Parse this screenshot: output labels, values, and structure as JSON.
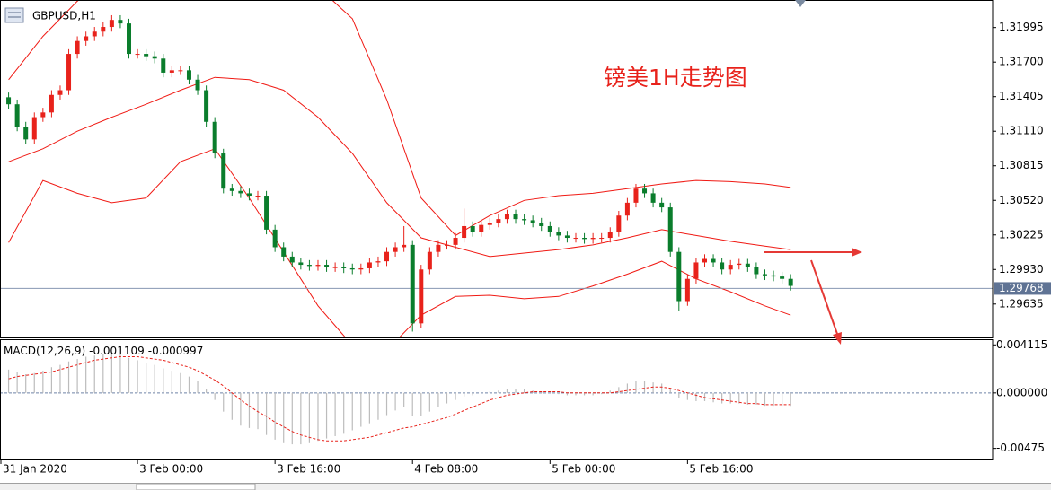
{
  "chart_data": {
    "type": "candlestick",
    "symbol": "GBPUSD,H1",
    "annotation": "镑美1H走势图",
    "xlim": [
      -1,
      114.5
    ],
    "xticks": [
      {
        "value": -1,
        "label": "31 Jan 2020"
      },
      {
        "value": 15,
        "label": "3 Feb 00:00"
      },
      {
        "value": 31,
        "label": "3 Feb 16:00"
      },
      {
        "value": 47,
        "label": "4 Feb 08:00"
      },
      {
        "value": 63,
        "label": "5 Feb 00:00"
      },
      {
        "value": 79,
        "label": "5 Feb 16:00"
      }
    ],
    "ylim": [
      1.2935,
      1.3223
    ],
    "yticks": [
      1.31995,
      {
        "value": 1.317,
        "label": "1.31700"
      },
      1.31405,
      {
        "value": 1.3111,
        "label": "1.31110"
      },
      1.30815,
      {
        "value": 1.3052,
        "label": "1.30520"
      },
      1.30225,
      {
        "value": 1.2993,
        "label": "1.29930"
      },
      1.29635
    ],
    "current_price": 1.29768,
    "up_color": "#e8221b",
    "down_color": "#0a7d2c",
    "open": [
      1.314,
      1.3134,
      1.3115,
      1.3104,
      1.3123,
      1.3127,
      1.3142,
      1.3146,
      1.3177,
      1.3188,
      1.3192,
      1.3196,
      1.32,
      1.3206,
      1.3203,
      1.3177,
      1.3177,
      1.3175,
      1.3173,
      1.3161,
      1.3163,
      1.3163,
      1.3155,
      1.3146,
      1.3119,
      1.3092,
      1.3062,
      1.306,
      1.3058,
      1.3056,
      1.3056,
      1.3027,
      1.3012,
      1.3004,
      1.2999,
      1.2997,
      1.2996,
      1.2997,
      1.2995,
      1.2995,
      1.2994,
      1.2993,
      1.2994,
      1.2999,
      1.3,
      1.3008,
      1.3012,
      1.3014,
      1.2947,
      1.2993,
      1.3008,
      1.3014,
      1.3014,
      1.302,
      1.303,
      1.3025,
      1.3031,
      1.3033,
      1.3036,
      1.304,
      1.3036,
      1.3035,
      1.3033,
      1.303,
      1.3025,
      1.3022,
      1.302,
      1.302,
      1.3019,
      1.302,
      1.302,
      1.3025,
      1.3039,
      1.305,
      1.3062,
      1.3058,
      1.305,
      1.3046,
      1.3008,
      1.2966,
      1.2985,
      1.2999,
      1.3002,
      1.2999,
      1.2993,
      1.2997,
      1.2998,
      1.2995,
      1.2989,
      1.2988,
      1.2987,
      1.2985
    ],
    "high": [
      1.3144,
      1.3138,
      1.3119,
      1.3127,
      1.3131,
      1.3146,
      1.315,
      1.3181,
      1.3192,
      1.3196,
      1.32,
      1.3204,
      1.321,
      1.321,
      1.3207,
      1.3181,
      1.3181,
      1.3179,
      1.3177,
      1.3167,
      1.3167,
      1.3167,
      1.3159,
      1.315,
      1.3123,
      1.3096,
      1.3066,
      1.3064,
      1.3062,
      1.306,
      1.306,
      1.3031,
      1.3016,
      1.3008,
      1.3003,
      1.3001,
      1.3001,
      1.3001,
      1.2999,
      1.2999,
      1.2998,
      1.2998,
      1.3003,
      1.3004,
      1.3012,
      1.3016,
      1.303,
      1.3018,
      1.2997,
      1.3012,
      1.3018,
      1.3018,
      1.3024,
      1.3045,
      1.3034,
      1.3035,
      1.3037,
      1.304,
      1.3044,
      1.3044,
      1.304,
      1.3039,
      1.3037,
      1.3034,
      1.3029,
      1.3026,
      1.3024,
      1.3024,
      1.3024,
      1.3024,
      1.3029,
      1.3043,
      1.3054,
      1.3066,
      1.3066,
      1.3062,
      1.3054,
      1.305,
      1.3012,
      1.2989,
      1.3003,
      1.3006,
      1.3006,
      1.3003,
      1.3001,
      1.3002,
      1.3002,
      1.2999,
      1.2993,
      1.2992,
      1.2991,
      1.2989
    ],
    "low": [
      1.313,
      1.3111,
      1.31,
      1.31,
      1.3119,
      1.3123,
      1.3138,
      1.3142,
      1.3173,
      1.3184,
      1.3188,
      1.3192,
      1.3196,
      1.3199,
      1.3173,
      1.3173,
      1.3171,
      1.3169,
      1.3157,
      1.3157,
      1.3159,
      1.3151,
      1.3142,
      1.3115,
      1.3088,
      1.3058,
      1.3056,
      1.3054,
      1.3052,
      1.3052,
      1.3023,
      1.3008,
      1.3,
      1.2995,
      1.2993,
      1.2992,
      1.2992,
      1.2991,
      1.2991,
      1.299,
      1.2989,
      1.2989,
      1.299,
      1.2995,
      1.2996,
      1.3004,
      1.3008,
      1.294,
      1.2943,
      1.2989,
      1.3004,
      1.301,
      1.301,
      1.3016,
      1.3021,
      1.3021,
      1.3027,
      1.3029,
      1.3032,
      1.3032,
      1.3031,
      1.3029,
      1.3026,
      1.3021,
      1.3018,
      1.3016,
      1.3016,
      1.3015,
      1.3015,
      1.3016,
      1.3016,
      1.3021,
      1.3035,
      1.3046,
      1.3054,
      1.3046,
      1.3042,
      1.3004,
      1.2958,
      1.2962,
      1.2981,
      1.2995,
      1.2995,
      1.2989,
      1.2989,
      1.2993,
      1.2991,
      1.2985,
      1.2984,
      1.2983,
      1.2981,
      1.2975
    ],
    "close": [
      1.3134,
      1.3115,
      1.3104,
      1.3123,
      1.3127,
      1.3142,
      1.3146,
      1.3177,
      1.3188,
      1.3192,
      1.3196,
      1.32,
      1.3206,
      1.3203,
      1.3177,
      1.3177,
      1.3175,
      1.3173,
      1.3161,
      1.3163,
      1.3163,
      1.3155,
      1.3146,
      1.3119,
      1.3092,
      1.3062,
      1.306,
      1.3058,
      1.3056,
      1.3056,
      1.3027,
      1.3012,
      1.3004,
      1.2999,
      1.2997,
      1.2996,
      1.2997,
      1.2995,
      1.2995,
      1.2994,
      1.2993,
      1.2994,
      1.2999,
      1.3,
      1.3008,
      1.3012,
      1.3014,
      1.2947,
      1.2993,
      1.3008,
      1.3014,
      1.3014,
      1.302,
      1.303,
      1.3025,
      1.3031,
      1.3033,
      1.3036,
      1.304,
      1.3036,
      1.3035,
      1.3033,
      1.303,
      1.3025,
      1.3022,
      1.302,
      1.302,
      1.3019,
      1.302,
      1.302,
      1.3025,
      1.3039,
      1.305,
      1.3062,
      1.3058,
      1.305,
      1.3046,
      1.3008,
      1.2966,
      1.2985,
      1.2999,
      1.3002,
      1.2999,
      1.2993,
      1.2997,
      1.2998,
      1.2995,
      1.2989,
      1.2988,
      1.2987,
      1.2985,
      1.2979
    ],
    "bands": {
      "color": "#f01a14",
      "x": [
        0,
        4,
        8,
        12,
        16,
        20,
        24,
        28,
        32,
        36,
        40,
        44,
        48,
        52,
        56,
        60,
        64,
        68,
        72,
        76,
        80,
        84,
        88,
        91
      ],
      "series": [
        {
          "values": [
            1.3155,
            1.3192,
            1.3222,
            1.3245,
            1.3261,
            1.3268,
            1.3268,
            1.3261,
            1.3249,
            1.3234,
            1.3207,
            1.3138,
            1.3054,
            1.3022,
            1.3039,
            1.3052,
            1.3056,
            1.3058,
            1.3062,
            1.3066,
            1.3069,
            1.3068,
            1.3066,
            1.3063
          ]
        },
        {
          "values": [
            1.3085,
            1.3096,
            1.3111,
            1.3123,
            1.3134,
            1.3146,
            1.3157,
            1.3155,
            1.3146,
            1.3123,
            1.3092,
            1.305,
            1.302,
            1.3012,
            1.3004,
            1.3007,
            1.301,
            1.3014,
            1.302,
            1.3027,
            1.3022,
            1.3017,
            1.3013,
            1.301
          ]
        },
        {
          "values": [
            1.3016,
            1.3069,
            1.3058,
            1.305,
            1.3054,
            1.3085,
            1.3096,
            1.3054,
            1.3008,
            1.2962,
            1.2928,
            1.2924,
            1.2954,
            1.297,
            1.2971,
            1.2968,
            1.297,
            1.2979,
            1.2989,
            1.3,
            1.2985,
            1.2974,
            1.2962,
            1.2954
          ]
        }
      ]
    },
    "macd": {
      "label": "MACD(12,26,9)",
      "macd_value": -0.001109,
      "signal_value": -0.000997,
      "ylim": [
        -0.0057,
        0.0046
      ],
      "yticks": [
        0.004115,
        {
          "value": 0,
          "label": "0.000000"
        },
        -0.00475
      ],
      "hist_color": "#bcbcbc",
      "signal_color": "#e8221b",
      "histogram": [
        0.002,
        0.0018,
        0.0016,
        0.0017,
        0.0019,
        0.0022,
        0.0024,
        0.0027,
        0.0029,
        0.0031,
        0.0032,
        0.0033,
        0.0034,
        0.0033,
        0.003,
        0.0028,
        0.0026,
        0.0024,
        0.0021,
        0.0019,
        0.0017,
        0.0014,
        0.001,
        0.0003,
        -0.0006,
        -0.0016,
        -0.0023,
        -0.0028,
        -0.003,
        -0.0031,
        -0.0036,
        -0.004,
        -0.0043,
        -0.0044,
        -0.0044,
        -0.0043,
        -0.0041,
        -0.0039,
        -0.0037,
        -0.0035,
        -0.0032,
        -0.0029,
        -0.0026,
        -0.0023,
        -0.0019,
        -0.0015,
        -0.0012,
        -0.002,
        -0.002,
        -0.0016,
        -0.0012,
        -0.0009,
        -0.0006,
        -0.0003,
        -0.0002,
        0.0,
        0.0001,
        0.0002,
        0.0003,
        0.0003,
        0.0003,
        0.0002,
        0.0001,
        0.0,
        -0.0001,
        -0.0002,
        -0.0002,
        -0.0002,
        -0.0002,
        -0.0001,
        0.0002,
        0.0005,
        0.0008,
        0.001,
        0.001,
        0.0009,
        0.0008,
        0.0003,
        -0.0004,
        -0.0006,
        -0.0007,
        -0.0007,
        -0.0008,
        -0.0009,
        -0.0009,
        -0.0009,
        -0.001,
        -0.001,
        -0.0011,
        -0.0011,
        -0.0011,
        -0.001109
      ],
      "signal": [
        0.0012,
        0.0014,
        0.0015,
        0.0016,
        0.0017,
        0.0018,
        0.002,
        0.0022,
        0.0024,
        0.0026,
        0.0028,
        0.0029,
        0.003,
        0.0031,
        0.0031,
        0.0031,
        0.003,
        0.0029,
        0.0028,
        0.0026,
        0.0024,
        0.0022,
        0.0019,
        0.0015,
        0.0011,
        0.0006,
        0.0,
        -0.0006,
        -0.0011,
        -0.0016,
        -0.002,
        -0.0025,
        -0.0029,
        -0.0033,
        -0.0036,
        -0.0038,
        -0.004,
        -0.0041,
        -0.0041,
        -0.0041,
        -0.004,
        -0.0039,
        -0.0038,
        -0.0036,
        -0.0034,
        -0.0032,
        -0.003,
        -0.0029,
        -0.0027,
        -0.0025,
        -0.0023,
        -0.0021,
        -0.0018,
        -0.0015,
        -0.0012,
        -0.0009,
        -0.0006,
        -0.0004,
        -0.0002,
        -0.0001,
        0.0,
        0.0001,
        0.0001,
        0.0001,
        0.0001,
        0.0,
        0.0,
        0.0,
        0.0,
        0.0,
        0.0,
        0.0001,
        0.0002,
        0.0003,
        0.0004,
        0.0005,
        0.0005,
        0.0004,
        0.0002,
        0.0,
        -0.0002,
        -0.0004,
        -0.0005,
        -0.0006,
        -0.0007,
        -0.0008,
        -0.0009,
        -0.0009,
        -0.001,
        -0.001,
        -0.001,
        -0.000997
      ]
    }
  }
}
